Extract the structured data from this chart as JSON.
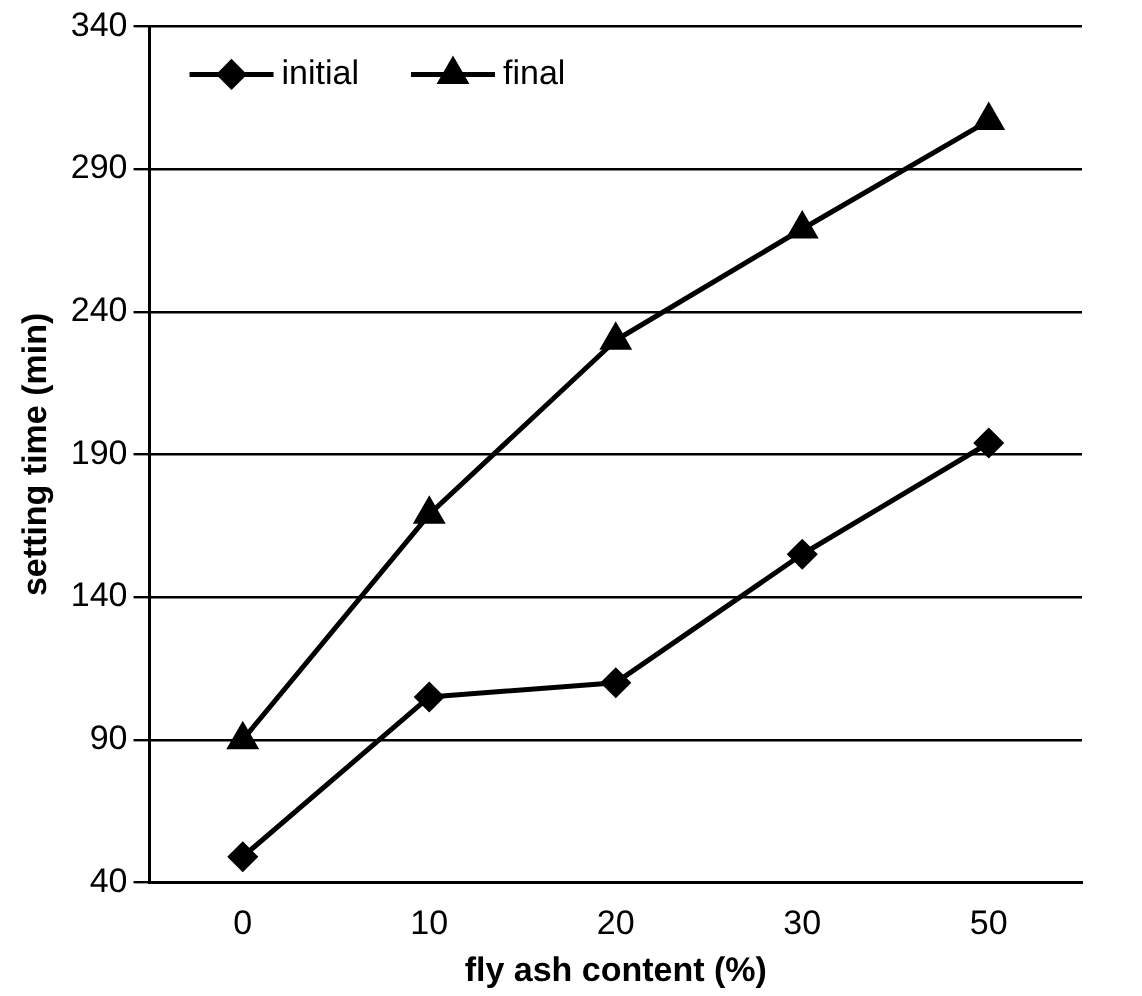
{
  "chart_data": {
    "type": "line",
    "xlabel": "fly ash content (%)",
    "ylabel": "setting time (min)",
    "categories": [
      "0",
      "10",
      "20",
      "30",
      "50"
    ],
    "series": [
      {
        "name": "initial",
        "color": "#000000",
        "marker": "diamond",
        "values": [
          49,
          105,
          110,
          155,
          194
        ]
      },
      {
        "name": "final",
        "color": "#000000",
        "marker": "triangle",
        "values": [
          90,
          169,
          230,
          269,
          307
        ]
      }
    ],
    "ylim": [
      40,
      340
    ],
    "yticks": [
      40,
      90,
      140,
      190,
      240,
      290,
      340
    ],
    "grid": "y",
    "legend": "top left",
    "line_style": "solid"
  }
}
